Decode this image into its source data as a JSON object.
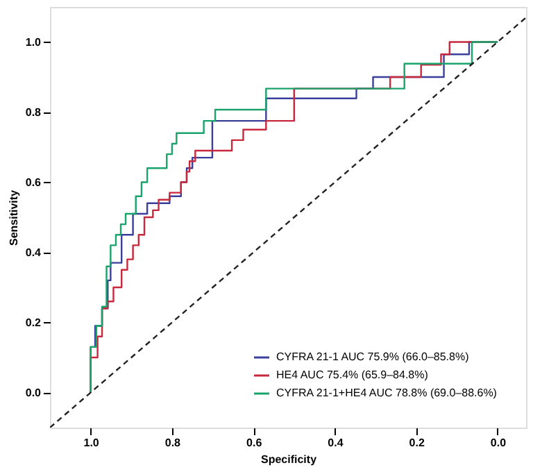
{
  "chart_data": {
    "type": "line",
    "xlabel": "Specificity",
    "ylabel": "Sensitivity",
    "xlim": [
      1.1,
      -0.07
    ],
    "ylim": [
      -0.1,
      1.1
    ],
    "xticks": [
      {
        "value": 1,
        "label": "1.0"
      },
      {
        "value": 0.8,
        "label": "0.8"
      },
      {
        "value": 0.6,
        "label": "0.6"
      },
      {
        "value": 0.4,
        "label": "0.4"
      },
      {
        "value": 0.2,
        "label": "0.2"
      },
      {
        "value": 0,
        "label": "0.0"
      }
    ],
    "yticks": [
      {
        "value": 0,
        "label": "0.0"
      },
      {
        "value": 0.2,
        "label": "0.2"
      },
      {
        "value": 0.4,
        "label": "0.4"
      },
      {
        "value": 0.6,
        "label": "0.6"
      },
      {
        "value": 0.8,
        "label": "0.8"
      },
      {
        "value": 1,
        "label": "1.0"
      }
    ],
    "grid": false,
    "legend": "bottom right",
    "series": [
      {
        "name": "CYFRA 21-1 AUC 75.9% (66.0–85.8%)",
        "color": "#3b3f9c",
        "x": [
          1.0,
          1.0,
          0.989,
          0.989,
          0.972,
          0.972,
          0.958,
          0.958,
          0.951,
          0.951,
          0.924,
          0.924,
          0.896,
          0.896,
          0.861,
          0.861,
          0.806,
          0.806,
          0.778,
          0.778,
          0.764,
          0.764,
          0.75,
          0.75,
          0.701,
          0.701,
          0.569,
          0.569,
          0.347,
          0.347,
          0.306,
          0.306,
          0.132,
          0.132,
          0.07,
          0.07,
          0.0
        ],
        "values": [
          0,
          0.13,
          0.13,
          0.19,
          0.19,
          0.24,
          0.24,
          0.32,
          0.32,
          0.37,
          0.37,
          0.45,
          0.45,
          0.51,
          0.51,
          0.54,
          0.54,
          0.56,
          0.56,
          0.6,
          0.6,
          0.64,
          0.64,
          0.67,
          0.67,
          0.775,
          0.775,
          0.839,
          0.839,
          0.867,
          0.867,
          0.9,
          0.9,
          0.965,
          0.965,
          1.0,
          1.0
        ]
      },
      {
        "name": "HE4 AUC 75.4% (65.9–84.8%)",
        "color": "#c8283c",
        "x": [
          1.0,
          1.0,
          0.983,
          0.983,
          0.972,
          0.972,
          0.958,
          0.958,
          0.944,
          0.944,
          0.924,
          0.924,
          0.91,
          0.91,
          0.896,
          0.896,
          0.882,
          0.882,
          0.868,
          0.868,
          0.847,
          0.847,
          0.833,
          0.833,
          0.806,
          0.806,
          0.778,
          0.778,
          0.764,
          0.764,
          0.757,
          0.757,
          0.743,
          0.743,
          0.653,
          0.653,
          0.625,
          0.625,
          0.569,
          0.569,
          0.5,
          0.5,
          0.264,
          0.264,
          0.188,
          0.188,
          0.139,
          0.139,
          0.118,
          0.118,
          0.0
        ],
        "values": [
          0,
          0.1,
          0.1,
          0.16,
          0.16,
          0.24,
          0.24,
          0.26,
          0.26,
          0.3,
          0.3,
          0.35,
          0.35,
          0.38,
          0.38,
          0.42,
          0.42,
          0.45,
          0.45,
          0.5,
          0.5,
          0.52,
          0.52,
          0.55,
          0.55,
          0.57,
          0.57,
          0.6,
          0.6,
          0.63,
          0.63,
          0.66,
          0.66,
          0.69,
          0.69,
          0.72,
          0.72,
          0.75,
          0.75,
          0.775,
          0.775,
          0.867,
          0.867,
          0.9,
          0.9,
          0.935,
          0.935,
          0.965,
          0.965,
          1.0,
          1.0
        ]
      },
      {
        "name": "CYFRA 21-1+HE4 AUC 78.8% (69.0–88.6%)",
        "color": "#1aa36a",
        "x": [
          1.0,
          1.0,
          0.986,
          0.986,
          0.972,
          0.972,
          0.961,
          0.961,
          0.951,
          0.951,
          0.938,
          0.938,
          0.926,
          0.926,
          0.914,
          0.914,
          0.889,
          0.889,
          0.875,
          0.875,
          0.861,
          0.861,
          0.813,
          0.813,
          0.8,
          0.8,
          0.789,
          0.789,
          0.722,
          0.722,
          0.694,
          0.694,
          0.569,
          0.569,
          0.229,
          0.229,
          0.063,
          0.063,
          0.0
        ],
        "values": [
          0,
          0.13,
          0.13,
          0.19,
          0.19,
          0.245,
          0.245,
          0.36,
          0.36,
          0.42,
          0.42,
          0.45,
          0.45,
          0.48,
          0.48,
          0.51,
          0.51,
          0.56,
          0.56,
          0.6,
          0.6,
          0.64,
          0.64,
          0.68,
          0.68,
          0.71,
          0.71,
          0.74,
          0.74,
          0.775,
          0.775,
          0.807,
          0.807,
          0.867,
          0.867,
          0.938,
          0.938,
          1.0,
          1.0
        ]
      },
      {
        "color": "#222222",
        "line_style": "dashed",
        "x": [
          1.1,
          -0.07
        ],
        "values": [
          -0.1,
          1.07
        ]
      }
    ]
  }
}
